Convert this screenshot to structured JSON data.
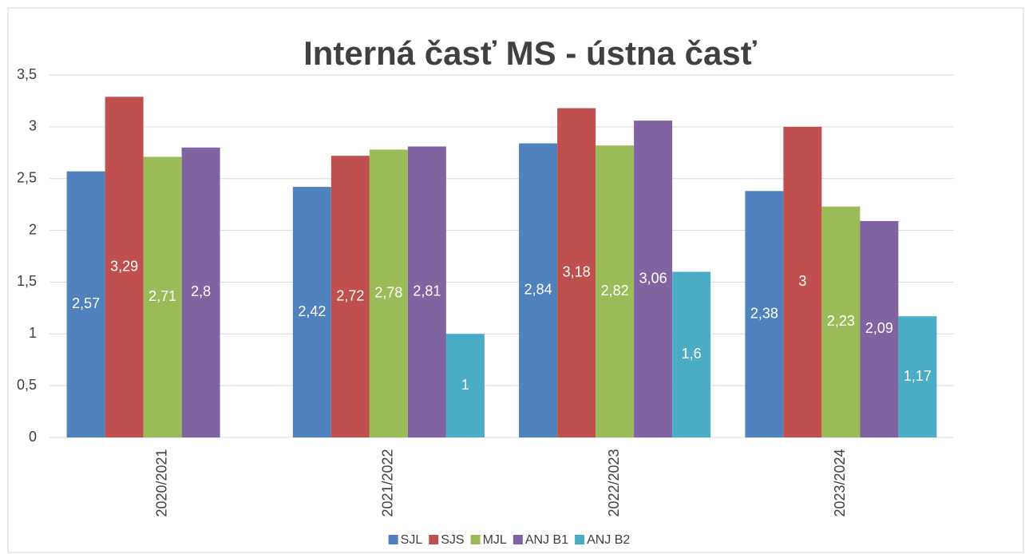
{
  "chart_data": {
    "type": "bar",
    "title": "Interná časť MS - ústna časť",
    "categories": [
      "2020/2021",
      "2021/2022",
      "2022/2023",
      "2023/2024"
    ],
    "series": [
      {
        "name": "SJL",
        "color": "#4f81bd",
        "values": [
          2.57,
          2.42,
          2.84,
          2.38
        ],
        "value_labels": [
          "2,57",
          "2,42",
          "2,84",
          "2,38"
        ]
      },
      {
        "name": "SJS",
        "color": "#c0504d",
        "values": [
          3.29,
          2.72,
          3.18,
          3
        ],
        "value_labels": [
          "3,29",
          "2,72",
          "3,18",
          "3"
        ]
      },
      {
        "name": "MJL",
        "color": "#9bbb59",
        "values": [
          2.71,
          2.78,
          2.82,
          2.23
        ],
        "value_labels": [
          "2,71",
          "2,78",
          "2,82",
          "2,23"
        ]
      },
      {
        "name": "ANJ B1",
        "color": "#8064a2",
        "values": [
          2.8,
          2.81,
          3.06,
          2.09
        ],
        "value_labels": [
          "2,8",
          "2,81",
          "3,06",
          "2,09"
        ]
      },
      {
        "name": "ANJ B2",
        "color": "#4bacc6",
        "values": [
          null,
          1,
          1.6,
          1.17
        ],
        "value_labels": [
          null,
          "1",
          "1,6",
          "1,17"
        ]
      }
    ],
    "ylim": [
      0,
      3.5
    ],
    "yticks": [
      0,
      {
        "value": 0.5,
        "label": "0,5"
      },
      1,
      {
        "value": 1.5,
        "label": "1,5"
      },
      2,
      {
        "value": 2.5,
        "label": "2,5"
      },
      3,
      {
        "value": 3.5,
        "label": "3,5"
      }
    ],
    "grid": true,
    "legend": "bottom"
  }
}
